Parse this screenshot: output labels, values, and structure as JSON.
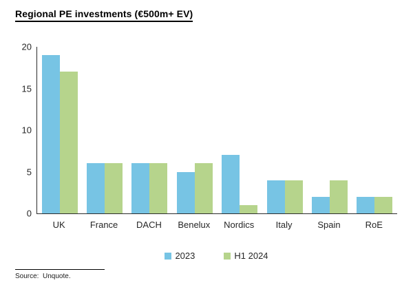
{
  "title": "Regional PE investments (€500m+ EV)",
  "source": "Source:  Unquote.",
  "chart_data": {
    "type": "bar",
    "title": "Regional PE investments (€500m+ EV)",
    "categories": [
      "UK",
      "France",
      "DACH",
      "Benelux",
      "Nordics",
      "Italy",
      "Spain",
      "RoE"
    ],
    "series": [
      {
        "name": "2023",
        "color": "#77C4E4",
        "values": [
          19,
          6,
          6,
          5,
          7,
          4,
          2,
          2
        ]
      },
      {
        "name": "H1 2024",
        "color": "#B6D48C",
        "values": [
          17,
          6,
          6,
          6,
          1,
          4,
          4,
          2
        ]
      }
    ],
    "xlabel": "",
    "ylabel": "",
    "ylim": [
      0,
      20
    ],
    "yticks": [
      0,
      5,
      10,
      15,
      20
    ],
    "grid": false,
    "legend_position": "bottom",
    "axis_color": "#2b2b2b"
  }
}
